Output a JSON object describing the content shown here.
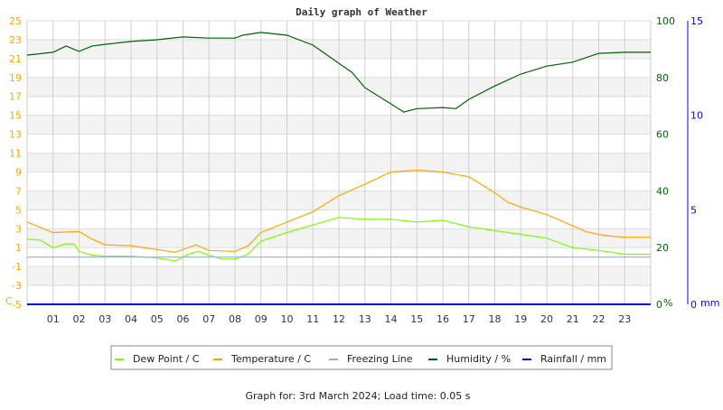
{
  "chart_data": {
    "type": "line",
    "title": "Daily graph of Weather",
    "footer": "Graph for: 3rd March 2024; Load time: 0.05 s",
    "x_ticks": [
      "01",
      "02",
      "03",
      "04",
      "05",
      "06",
      "07",
      "08",
      "09",
      "10",
      "11",
      "12",
      "13",
      "14",
      "15",
      "16",
      "17",
      "18",
      "19",
      "20",
      "21",
      "22",
      "23"
    ],
    "xlim": [
      0,
      24
    ],
    "y_left": {
      "unit_label": "C",
      "ylim": [
        -5,
        25
      ],
      "ticks": [
        "25",
        "23",
        "21",
        "19",
        "17",
        "15",
        "13",
        "11",
        "9",
        "7",
        "5",
        "3",
        "1",
        "-1",
        "-3",
        "-5"
      ],
      "color": "#ffa500"
    },
    "y_right1": {
      "unit_label": "%",
      "ylim": [
        0,
        100
      ],
      "ticks": [
        "100",
        "80",
        "60",
        "40",
        "20",
        "0"
      ],
      "color": "#006400"
    },
    "y_right2": {
      "unit_label": "mm",
      "ylim": [
        0,
        15
      ],
      "ticks": [
        "15",
        "10",
        "5",
        "0"
      ],
      "color": "#0000ff"
    },
    "grid": true,
    "legend_position": "bottom",
    "series": [
      {
        "name": "Dew Point / C",
        "axis": "left",
        "color": "#7cfc00",
        "x": [
          0,
          0.5,
          1,
          1.5,
          1.8,
          2,
          2.5,
          3,
          4,
          5,
          5.7,
          6.3,
          6.6,
          7,
          7.5,
          8,
          8.5,
          9,
          10,
          11,
          12,
          13,
          14,
          15,
          16,
          17,
          18,
          19,
          20,
          21,
          22,
          23,
          24
        ],
        "y": [
          1.9,
          1.8,
          1.0,
          1.4,
          1.4,
          0.6,
          0.2,
          0.1,
          0.1,
          -0.1,
          -0.4,
          0.4,
          0.6,
          0.2,
          -0.2,
          -0.2,
          0.3,
          1.7,
          2.6,
          3.4,
          4.2,
          4.0,
          4.0,
          3.7,
          3.9,
          3.2,
          2.8,
          2.4,
          2.0,
          1.0,
          0.7,
          0.3,
          0.3
        ]
      },
      {
        "name": "Temperature / C",
        "axis": "left",
        "color": "#ffa500",
        "x": [
          0,
          1,
          2,
          2.5,
          3,
          4,
          5,
          5.7,
          6.5,
          7,
          8,
          8.5,
          9,
          10,
          11,
          12,
          13,
          14,
          15,
          16,
          17,
          18,
          18.5,
          19,
          20,
          21,
          21.5,
          22,
          22.5,
          23,
          24
        ],
        "y": [
          3.7,
          2.6,
          2.7,
          1.9,
          1.3,
          1.2,
          0.8,
          0.5,
          1.3,
          0.7,
          0.6,
          1.2,
          2.6,
          3.7,
          4.8,
          6.5,
          7.7,
          9.0,
          9.2,
          9.0,
          8.5,
          6.8,
          5.8,
          5.3,
          4.5,
          3.3,
          2.7,
          2.4,
          2.2,
          2.1,
          2.1
        ]
      },
      {
        "name": "Freezing Line",
        "axis": "left",
        "color": "#a0b0c8",
        "x": [
          0,
          24
        ],
        "y": [
          0,
          0
        ]
      },
      {
        "name": "Humidity / %",
        "axis": "right1",
        "color": "#006400",
        "x": [
          0,
          1,
          1.5,
          2,
          2.5,
          3,
          4,
          5,
          6,
          7,
          8,
          8.3,
          9,
          10,
          11,
          12,
          12.5,
          13,
          14,
          14.5,
          15,
          16,
          16.5,
          17,
          18,
          19,
          20,
          21,
          22,
          23,
          24
        ],
        "y": [
          87.9,
          88.9,
          91.1,
          89.2,
          91.1,
          91.7,
          92.7,
          93.3,
          94.3,
          93.9,
          93.9,
          94.9,
          95.9,
          94.9,
          91.4,
          85.0,
          81.8,
          76.4,
          70.7,
          67.8,
          69.0,
          69.4,
          69.0,
          72.3,
          77.0,
          81.2,
          84.0,
          85.4,
          88.5,
          88.9,
          88.9
        ]
      },
      {
        "name": "Rainfall / mm",
        "axis": "right2",
        "color": "#0000ff",
        "x": [
          0,
          24
        ],
        "y": [
          0,
          0
        ]
      }
    ]
  }
}
